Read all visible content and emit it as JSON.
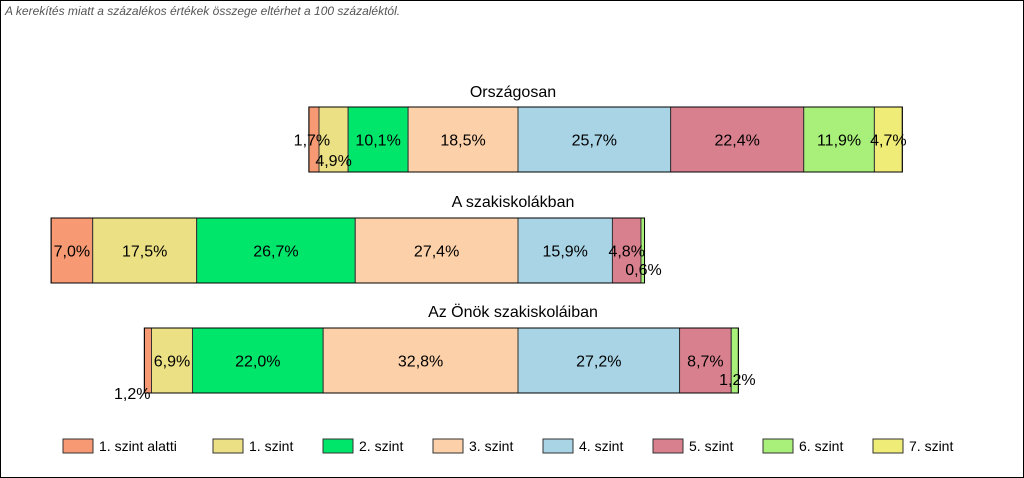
{
  "note": "A kerekítés miatt a  százalékos értékek összege eltérhet a 100 százaléktól.",
  "chart_data": {
    "type": "bar",
    "orientation": "horizontal",
    "stacked": true,
    "grid": false,
    "legend_position": "bottom",
    "levels": [
      {
        "name": "1. szint alatti",
        "color": "#f79a73"
      },
      {
        "name": "1. szint",
        "color": "#ece085"
      },
      {
        "name": "2. szint",
        "color": "#00e66b"
      },
      {
        "name": "3. szint",
        "color": "#fcd0a8"
      },
      {
        "name": "4. szint",
        "color": "#a8d4e6"
      },
      {
        "name": "5. szint",
        "color": "#d9808f"
      },
      {
        "name": "6. szint",
        "color": "#a8f07a"
      },
      {
        "name": "7. szint",
        "color": "#f0ec78"
      }
    ],
    "bars": [
      {
        "title": "Országosan",
        "values": [
          1.7,
          4.9,
          10.1,
          18.5,
          25.7,
          22.4,
          11.9,
          4.7
        ],
        "labels": [
          "1,7%",
          "4,9%",
          "10,1%",
          "18,5%",
          "25,7%",
          "22,4%",
          "11,9%",
          "4,7%"
        ]
      },
      {
        "title": "A szakiskolákban",
        "values": [
          7.0,
          17.5,
          26.7,
          27.4,
          15.9,
          4.8,
          0.6,
          0.0
        ],
        "labels": [
          "7,0%",
          "17,5%",
          "26,7%",
          "27,4%",
          "15,9%",
          "4,8%",
          "0,6%",
          ""
        ]
      },
      {
        "title": "Az Önök szakiskoláiban",
        "values": [
          1.2,
          6.9,
          22.0,
          32.8,
          27.2,
          8.7,
          1.2,
          0.0
        ],
        "labels": [
          "1,2%",
          "6,9%",
          "22,0%",
          "32,8%",
          "27,2%",
          "8,7%",
          "1,2%",
          ""
        ]
      }
    ]
  }
}
